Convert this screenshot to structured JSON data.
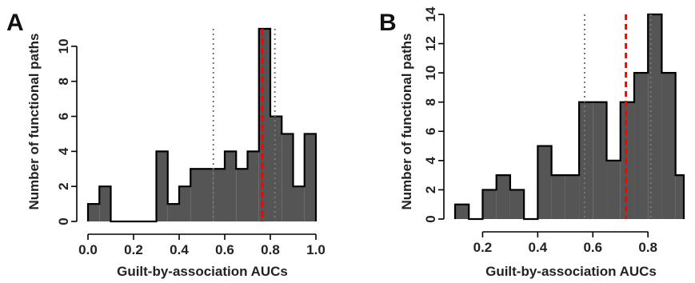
{
  "chart_data": [
    {
      "panel": "A",
      "type": "histogram",
      "xlabel": "Guilt-by-association AUCs",
      "ylabel": "Number of functional paths",
      "xlim": [
        0.0,
        1.0
      ],
      "ylim": [
        0,
        11
      ],
      "xticks": [
        "0.0",
        "0.2",
        "0.4",
        "0.6",
        "0.8",
        "1.0"
      ],
      "yticks": [
        "0",
        "2",
        "4",
        "6",
        "8",
        "10"
      ],
      "bin_edges": [
        0.0,
        0.05,
        0.1,
        0.15,
        0.2,
        0.25,
        0.3,
        0.35,
        0.4,
        0.45,
        0.5,
        0.55,
        0.6,
        0.65,
        0.7,
        0.75,
        0.8,
        0.85,
        0.9,
        0.95,
        1.0
      ],
      "counts": [
        1,
        2,
        0,
        0,
        0,
        0,
        4,
        1,
        2,
        3,
        3,
        3,
        4,
        3,
        4,
        11,
        6,
        5,
        2,
        5
      ],
      "vlines": [
        {
          "x": 0.55,
          "style": "dotted",
          "color": "#777777"
        },
        {
          "x": 0.765,
          "style": "dashed",
          "color": "#ff0000"
        },
        {
          "x": 0.82,
          "style": "dotted",
          "color": "#777777"
        }
      ],
      "fill_color": "#555555",
      "grid": false
    },
    {
      "panel": "B",
      "type": "histogram",
      "xlabel": "Guilt-by-association AUCs",
      "ylabel": "Number of functional paths",
      "xlim": [
        0.1,
        0.93
      ],
      "ylim": [
        0,
        14
      ],
      "xticks": [
        "0.2",
        "0.4",
        "0.6",
        "0.8"
      ],
      "yticks": [
        "0",
        "2",
        "4",
        "6",
        "8",
        "10",
        "12",
        "14"
      ],
      "bin_edges": [
        0.1,
        0.15,
        0.2,
        0.25,
        0.3,
        0.35,
        0.4,
        0.45,
        0.5,
        0.55,
        0.6,
        0.65,
        0.7,
        0.75,
        0.8,
        0.85,
        0.9,
        0.93
      ],
      "counts": [
        1,
        0,
        2,
        3,
        2,
        0,
        5,
        3,
        3,
        8,
        8,
        4,
        8,
        10,
        14,
        10,
        3
      ],
      "vlines": [
        {
          "x": 0.57,
          "style": "dotted",
          "color": "#777777"
        },
        {
          "x": 0.72,
          "style": "dashed",
          "color": "#ff0000"
        },
        {
          "x": 0.81,
          "style": "dotted",
          "color": "#777777"
        }
      ],
      "fill_color": "#555555",
      "grid": false
    }
  ]
}
